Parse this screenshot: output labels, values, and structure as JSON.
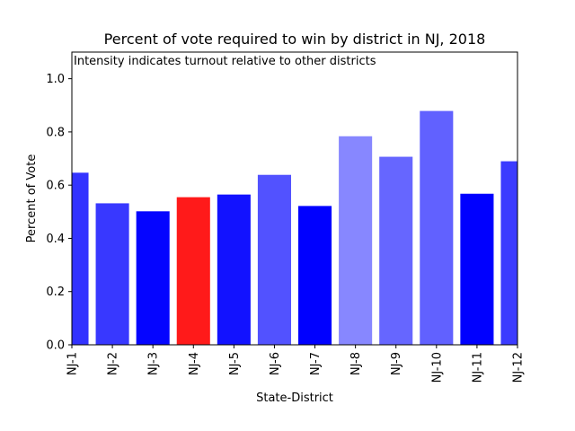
{
  "chart_data": {
    "type": "bar",
    "title": "Percent of vote required to win by district in NJ, 2018",
    "annotation": "Intensity indicates turnout relative to other districts",
    "xlabel": "State-District",
    "ylabel": "Percent of Vote",
    "ylim": [
      0,
      1.1
    ],
    "yticks": [
      0.0,
      0.2,
      0.4,
      0.6,
      0.8,
      1.0
    ],
    "ytick_labels": [
      "0.0",
      "0.2",
      "0.4",
      "0.6",
      "0.8",
      "1.0"
    ],
    "grid": false,
    "categories": [
      "NJ-1",
      "NJ-2",
      "NJ-3",
      "NJ-4",
      "NJ-5",
      "NJ-6",
      "NJ-7",
      "NJ-8",
      "NJ-9",
      "NJ-10",
      "NJ-11",
      "NJ-12"
    ],
    "values": [
      0.645,
      0.53,
      0.5,
      0.553,
      0.563,
      0.637,
      0.52,
      0.782,
      0.705,
      0.877,
      0.566,
      0.688
    ],
    "colors": [
      "#3333ff",
      "#3838ff",
      "#0505ff",
      "#ff1a1a",
      "#1212ff",
      "#5252ff",
      "#0000ff",
      "#8787ff",
      "#6666ff",
      "#6161ff",
      "#0000ff",
      "#3b3bff"
    ]
  }
}
